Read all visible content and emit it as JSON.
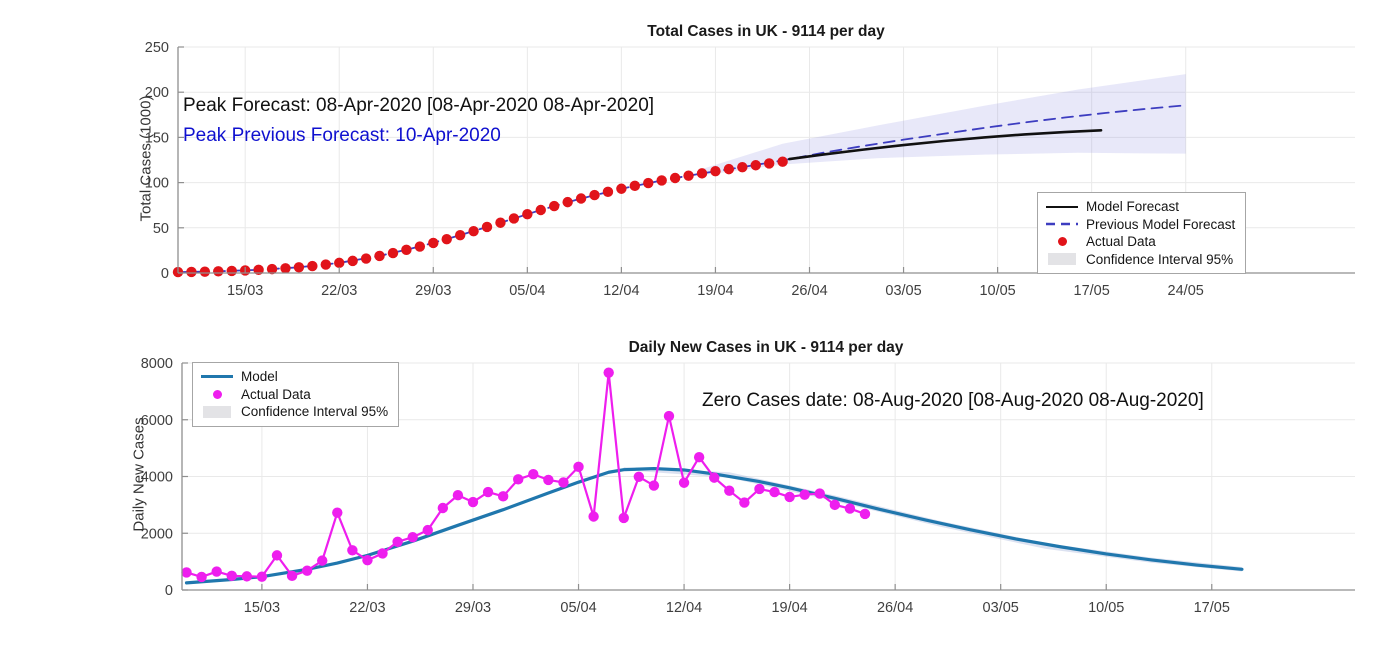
{
  "figure": {
    "top": {
      "title": "Total Cases in UK - 9114 per day",
      "ylabel": "Total Cases (1000)",
      "annotation1": "Peak Forecast: 08-Apr-2020 [08-Apr-2020 08-Apr-2020]",
      "annotation2": "Peak Previous Forecast: 10-Apr-2020",
      "annotation2_color": "#0f10cf",
      "legend": [
        {
          "label": "Model Forecast",
          "marker": "black-solid-line"
        },
        {
          "label": "Previous Model Forecast",
          "marker": "blue-dashed-line"
        },
        {
          "label": "Actual Data",
          "marker": "red-dot"
        },
        {
          "label": "Confidence Interval 95%",
          "marker": "gray-patch"
        }
      ]
    },
    "bottom": {
      "title": "Daily New Cases in UK - 9114 per day",
      "ylabel": "Daily New Cases",
      "annotation": "Zero Cases date: 08-Aug-2020 [08-Aug-2020 08-Aug-2020]",
      "legend": [
        {
          "label": "Model",
          "marker": "teal-line"
        },
        {
          "label": "Actual Data",
          "marker": "magenta-dot"
        },
        {
          "label": "Confidence Interval 95%",
          "marker": "gray-patch"
        }
      ]
    }
  },
  "chart_data": [
    {
      "type": "line",
      "name": "total-cases-chart",
      "title": "Total Cases in UK - 9114 per day",
      "xlabel": "",
      "ylabel": "Total Cases (1000)",
      "x_unit": "days since 10-Mar-2020",
      "x_domain": [
        0,
        87.6
      ],
      "ylim": [
        0,
        250
      ],
      "grid": true,
      "legend_position": "lower right",
      "yticks": [
        0,
        50,
        100,
        150,
        200,
        250
      ],
      "xticks": [
        {
          "day": 5,
          "label": "15/03"
        },
        {
          "day": 12,
          "label": "22/03"
        },
        {
          "day": 19,
          "label": "29/03"
        },
        {
          "day": 26,
          "label": "05/04"
        },
        {
          "day": 33,
          "label": "12/04"
        },
        {
          "day": 40,
          "label": "19/04"
        },
        {
          "day": 47,
          "label": "26/04"
        },
        {
          "day": 54,
          "label": "03/05"
        },
        {
          "day": 61,
          "label": "10/05"
        },
        {
          "day": 68,
          "label": "17/05"
        },
        {
          "day": 75,
          "label": "24/05"
        }
      ],
      "series": [
        {
          "name": "Confidence Interval 95%",
          "type": "band",
          "color": "rgba(142,142,224,0.20)",
          "x": [
            39,
            45,
            52,
            60,
            67,
            75
          ],
          "upper": [
            115,
            143,
            163,
            185,
            203,
            220
          ],
          "lower": [
            108,
            120,
            127,
            131,
            133,
            132
          ]
        },
        {
          "name": "Previous Model Forecast",
          "type": "line",
          "style": "dashed",
          "color": "#3d3dc0",
          "width": 1.8,
          "x": [
            0,
            3,
            6,
            9,
            12,
            15,
            18,
            21,
            24,
            27,
            30,
            33,
            36,
            39,
            42,
            45,
            48,
            51,
            54,
            57,
            60,
            63,
            66,
            69,
            72,
            75
          ],
          "y": [
            1.0,
            1.9,
            3.5,
            6.3,
            11.2,
            18.9,
            29.3,
            41.8,
            55.6,
            69.7,
            82.4,
            93.2,
            102.4,
            110.2,
            117.1,
            124.5,
            133,
            140.5,
            147.5,
            154,
            160.5,
            166.5,
            172,
            177,
            181.5,
            185.5
          ]
        },
        {
          "name": "Model Forecast",
          "type": "line",
          "color": "#111111",
          "width": 2.6,
          "x": [
            45.5,
            48,
            51,
            54,
            57,
            60,
            63,
            66,
            68.7
          ],
          "y": [
            126,
            131,
            136.5,
            141.5,
            146,
            150,
            153.3,
            155.9,
            157.8
          ]
        },
        {
          "name": "Actual Data",
          "type": "scatter",
          "color": "#e1141a",
          "size": 5.2,
          "x": [
            0,
            1,
            2,
            3,
            4,
            5,
            6,
            7,
            8,
            9,
            10,
            11,
            12,
            13,
            14,
            15,
            16,
            17,
            18,
            19,
            20,
            21,
            22,
            23,
            24,
            25,
            26,
            27,
            28,
            29,
            30,
            31,
            32,
            33,
            34,
            35,
            36,
            37,
            38,
            39,
            40,
            41,
            42,
            43,
            44,
            45
          ],
          "y": [
            1.0,
            1.2,
            1.5,
            1.9,
            2.3,
            2.8,
            3.5,
            4.3,
            5.2,
            6.3,
            7.7,
            9.3,
            11.2,
            13.4,
            16.0,
            18.9,
            22.1,
            25.6,
            29.3,
            33.2,
            37.4,
            41.8,
            46.3,
            50.9,
            55.6,
            60.4,
            65.1,
            69.7,
            74.1,
            78.4,
            82.4,
            86.2,
            89.8,
            93.2,
            96.4,
            99.5,
            102.4,
            105.1,
            107.7,
            110.2,
            112.6,
            114.9,
            117.1,
            119.2,
            121.2,
            123.1
          ]
        }
      ]
    },
    {
      "type": "line",
      "name": "daily-new-cases-chart",
      "title": "Daily New Cases in UK - 9114 per day",
      "xlabel": "",
      "ylabel": "Daily New Cases",
      "x_unit": "days since 10-Mar-2020",
      "x_domain": [
        -0.3,
        77.5
      ],
      "ylim": [
        0,
        8000
      ],
      "grid": true,
      "legend_position": "upper left",
      "yticks": [
        0,
        2000,
        4000,
        6000,
        8000
      ],
      "xticks": [
        {
          "day": 5,
          "label": "15/03"
        },
        {
          "day": 12,
          "label": "22/03"
        },
        {
          "day": 19,
          "label": "29/03"
        },
        {
          "day": 26,
          "label": "05/04"
        },
        {
          "day": 33,
          "label": "12/04"
        },
        {
          "day": 40,
          "label": "19/04"
        },
        {
          "day": 47,
          "label": "26/04"
        },
        {
          "day": 54,
          "label": "03/05"
        },
        {
          "day": 61,
          "label": "10/05"
        },
        {
          "day": 68,
          "label": "17/05"
        }
      ],
      "series": [
        {
          "name": "Confidence Interval 95%",
          "type": "band",
          "color": "rgba(140,160,210,0.30)",
          "x": [
            29,
            36,
            43,
            50,
            57,
            64,
            70
          ],
          "upper": [
            4330,
            4150,
            3330,
            2430,
            1650,
            1140,
            810
          ],
          "lower": [
            4230,
            3950,
            3130,
            2230,
            1450,
            960,
            650
          ]
        },
        {
          "name": "Model",
          "type": "line",
          "color": "#2077ad",
          "width": 3.2,
          "x": [
            0,
            3,
            5,
            8,
            10,
            12,
            15,
            18,
            21,
            24,
            26,
            28,
            29,
            31,
            33,
            35,
            38,
            40,
            43,
            46,
            49,
            52,
            55,
            58,
            61,
            64,
            67,
            70
          ],
          "y": [
            250,
            370,
            470,
            730,
            950,
            1220,
            1720,
            2280,
            2830,
            3420,
            3800,
            4150,
            4240,
            4280,
            4230,
            4090,
            3820,
            3600,
            3230,
            2840,
            2470,
            2120,
            1800,
            1520,
            1270,
            1060,
            880,
            730
          ]
        },
        {
          "name": "Actual Data",
          "type": "line",
          "marker": true,
          "color": "#ee1eee",
          "width": 2.2,
          "size": 5.2,
          "x": [
            0,
            1,
            2,
            3,
            4,
            5,
            6,
            7,
            8,
            9,
            10,
            11,
            12,
            13,
            14,
            15,
            16,
            17,
            18,
            19,
            20,
            21,
            22,
            23,
            24,
            25,
            26,
            27,
            28,
            29,
            30,
            31,
            32,
            33,
            34,
            35,
            36,
            37,
            38,
            39,
            40,
            41,
            42,
            43,
            44,
            45
          ],
          "y": [
            620,
            460,
            650,
            500,
            480,
            470,
            1220,
            500,
            680,
            1035,
            2725,
            1400,
            1050,
            1290,
            1700,
            1860,
            2110,
            2890,
            3340,
            3100,
            3450,
            3300,
            3900,
            4080,
            3880,
            3790,
            4340,
            2590,
            7660,
            2540,
            3990,
            3680,
            6130,
            3780,
            4680,
            3960,
            3500,
            3080,
            3560,
            3450,
            3280,
            3360,
            3400,
            3000,
            2870,
            2680
          ]
        }
      ]
    }
  ]
}
